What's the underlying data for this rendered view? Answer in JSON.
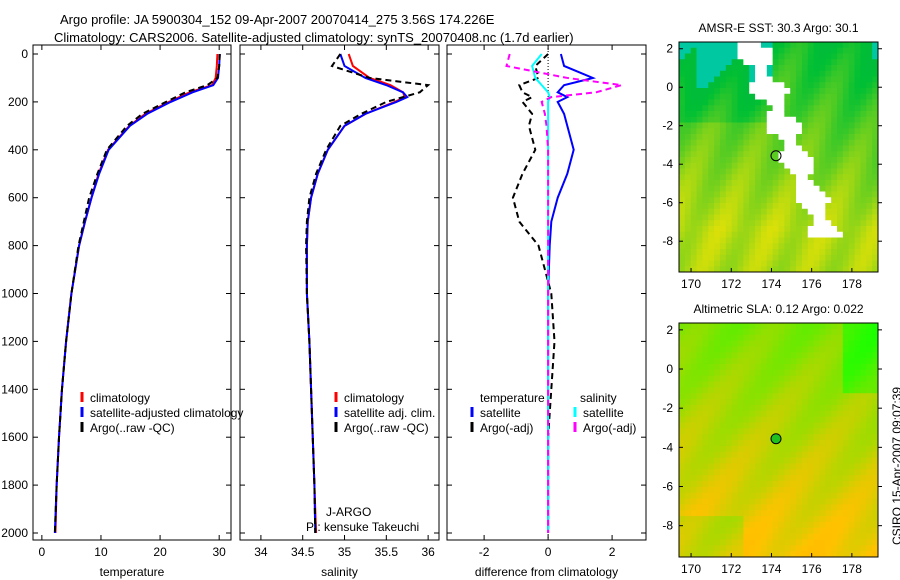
{
  "title": {
    "line1": "Argo profile: JA 5900304_152 09-Apr-2007 20070414_275 3.56S 174.226E",
    "line2": "Climatology: CARS2006. Satellite-adjusted climatology: synTS_20070408.nc (1.7d earlier)"
  },
  "side_label": "CSIRO 15-Apr-2007 09:07:39",
  "chart_data": [
    {
      "type": "line",
      "xlabel": "temperature",
      "xlim": [
        -1.5,
        32
      ],
      "ylim": [
        2050,
        0
      ],
      "xticks": [
        0,
        10,
        20,
        30
      ],
      "yticks": [
        0,
        200,
        400,
        600,
        800,
        1000,
        1200,
        1400,
        1600,
        1800,
        2000
      ],
      "depth": [
        0,
        50,
        100,
        130,
        160,
        200,
        250,
        300,
        400,
        500,
        600,
        700,
        800,
        1000,
        1200,
        1400,
        1600,
        1800,
        2000
      ],
      "series": [
        {
          "name": "climatology",
          "color": "#ff0000",
          "dash": "none",
          "values": [
            29.7,
            29.6,
            29.4,
            28.8,
            25,
            21.5,
            17.5,
            14.8,
            11.2,
            9.6,
            8.4,
            7.3,
            6.3,
            5,
            4.1,
            3.4,
            2.9,
            2.5,
            2.3
          ]
        },
        {
          "name": "satellite-adjusted climatology",
          "color": "#0000ff",
          "dash": "none",
          "values": [
            30.1,
            30,
            29.8,
            29,
            25.5,
            21.8,
            17.8,
            14.9,
            11.3,
            9.7,
            8.4,
            7.3,
            6.3,
            5,
            4.1,
            3.4,
            2.9,
            2.5,
            2.2
          ]
        },
        {
          "name": "Argo(..raw -QC)",
          "color": "#000000",
          "dash": "6,4",
          "values": [
            30.1,
            30,
            29.7,
            28,
            24.3,
            21,
            17,
            14.4,
            11,
            9.4,
            8,
            7.1,
            6.2,
            5,
            4.1,
            3.4,
            2.9,
            2.5,
            2.2
          ]
        }
      ]
    },
    {
      "type": "line",
      "xlabel": "salinity",
      "xlim": [
        33.75,
        36.13
      ],
      "ylim": [
        2050,
        0
      ],
      "xticks": [
        34,
        34.5,
        35,
        35.5,
        36
      ],
      "depth": [
        0,
        50,
        100,
        130,
        160,
        180,
        200,
        250,
        300,
        400,
        500,
        600,
        700,
        800,
        1000,
        1200,
        1400,
        1600,
        1800,
        2000
      ],
      "series": [
        {
          "name": "climatology",
          "color": "#ff0000",
          "dash": "none",
          "values": [
            35.05,
            35.1,
            35.3,
            35.55,
            35.7,
            35.72,
            35.6,
            35.25,
            35.0,
            34.8,
            34.68,
            34.6,
            34.56,
            34.55,
            34.55,
            34.58,
            34.6,
            34.62,
            34.64,
            34.66
          ]
        },
        {
          "name": "satellite adj. clim.",
          "color": "#0000ff",
          "dash": "none",
          "values": [
            34.95,
            35.0,
            35.25,
            35.5,
            35.7,
            35.75,
            35.62,
            35.25,
            35.0,
            34.8,
            34.68,
            34.6,
            34.56,
            34.55,
            34.55,
            34.58,
            34.6,
            34.62,
            34.64,
            34.65
          ]
        },
        {
          "name": "Argo(..raw -QC)",
          "color": "#000000",
          "dash": "6,4",
          "values": [
            34.95,
            34.85,
            35.3,
            36.0,
            35.9,
            35.7,
            35.5,
            35.2,
            34.95,
            34.78,
            34.66,
            34.58,
            34.55,
            34.54,
            34.55,
            34.58,
            34.6,
            34.62,
            34.64,
            34.65
          ]
        }
      ],
      "annotation": [
        "J-ARGO",
        "PI: kensuke Takeuchi"
      ]
    },
    {
      "type": "line",
      "xlabel": "difference from climatology",
      "xlim": [
        -3.16,
        3.06
      ],
      "ylim": [
        2050,
        0
      ],
      "xticks": [
        -2,
        0,
        2
      ],
      "legend_headers": [
        "temperature",
        "salinity"
      ],
      "depth": [
        0,
        50,
        100,
        130,
        160,
        180,
        200,
        250,
        300,
        400,
        500,
        600,
        700,
        800,
        1000,
        1200,
        1400,
        1600,
        1800,
        2000
      ],
      "series": [
        {
          "name": "satellite",
          "group": "temperature",
          "color": "#0000ff",
          "dash": "none",
          "values": [
            0.4,
            0.5,
            1.4,
            0.5,
            0.3,
            0.6,
            0.3,
            0.5,
            0.6,
            0.8,
            0.6,
            0.3,
            0.1,
            0.05,
            0,
            0,
            0,
            0,
            0,
            0
          ]
        },
        {
          "name": "Argo(-adj)",
          "group": "temperature",
          "color": "#000000",
          "dash": "6,4",
          "values": [
            0,
            -0.4,
            -0.3,
            -0.9,
            -0.8,
            -0.5,
            -0.8,
            -0.5,
            -0.6,
            -0.4,
            -0.8,
            -1.1,
            -0.9,
            -0.3,
            0.1,
            0.2,
            0.1,
            0,
            0,
            0
          ]
        },
        {
          "name": "satellite",
          "group": "salinity",
          "color": "#00ffff",
          "dash": "none",
          "values": [
            -0.2,
            -0.5,
            -0.4,
            -0.2,
            0,
            0.05,
            0,
            0,
            0,
            0,
            0,
            0,
            0,
            0,
            0,
            0,
            0,
            0,
            0,
            0
          ]
        },
        {
          "name": "Argo(-adj)",
          "group": "salinity",
          "color": "#ff00ff",
          "dash": "6,4",
          "values": [
            -1.2,
            -1.3,
            0.6,
            2.3,
            1.5,
            0.1,
            -0.2,
            -0.1,
            -0.05,
            0,
            0,
            0,
            0,
            0,
            0,
            0,
            0,
            0,
            0,
            0
          ]
        }
      ]
    },
    {
      "type": "heatmap",
      "title": "AMSR-E SST: 30.3 Argo: 30.1",
      "xlim": [
        169.4,
        179.3
      ],
      "ylim": [
        -9.6,
        2.35
      ],
      "xticks": [
        170,
        172,
        174,
        176,
        178
      ],
      "yticks": [
        2,
        0,
        -2,
        -4,
        -6,
        -8
      ],
      "marker": [
        174.226,
        -3.56
      ]
    },
    {
      "type": "heatmap",
      "title": "Altimetric SLA: 0.12 Argo: 0.022",
      "xlim": [
        169.4,
        179.3
      ],
      "ylim": [
        -9.6,
        2.35
      ],
      "xticks": [
        170,
        172,
        174,
        176,
        178
      ],
      "yticks": [
        2,
        0,
        -2,
        -4,
        -6,
        -8
      ],
      "marker": [
        174.226,
        -3.56
      ]
    }
  ]
}
